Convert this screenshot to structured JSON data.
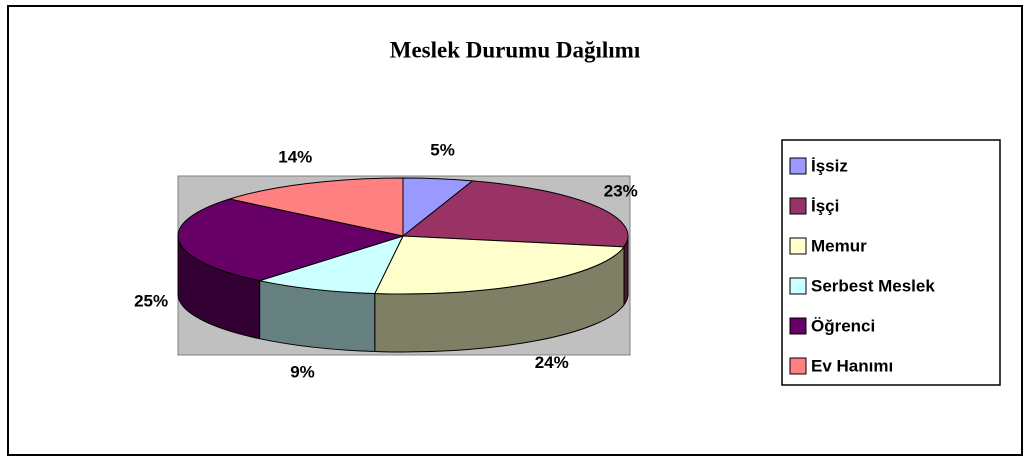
{
  "chart_data": {
    "type": "pie3d",
    "title": "Meslek Durumu Dağılımı",
    "categories": [
      "İşsiz",
      "İşçi",
      "Memur",
      "Serbest Meslek",
      "Öğrenci",
      "Ev Hanımı"
    ],
    "values": [
      5,
      23,
      24,
      9,
      25,
      14
    ],
    "value_labels": [
      "5%",
      "23%",
      "24%",
      "9%",
      "25%",
      "14%"
    ],
    "colors": [
      "#9999ff",
      "#993366",
      "#ffffcc",
      "#ccffff",
      "#660066",
      "#ff8080"
    ],
    "legend": "right"
  }
}
